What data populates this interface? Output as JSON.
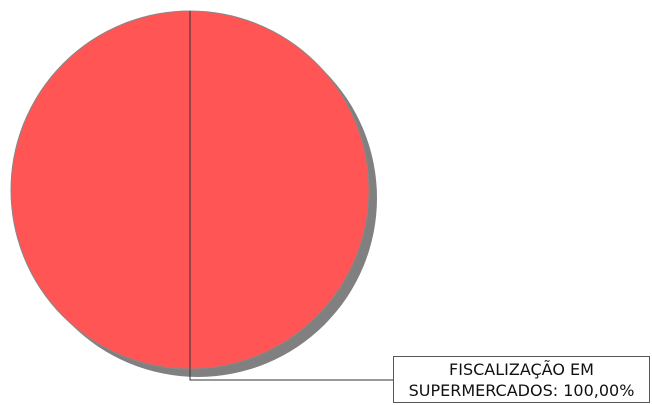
{
  "chart_data": {
    "type": "pie",
    "values": [
      100
    ],
    "value_labels": [
      "FISCALIZAÇÃO EM SUPERMERCADOS: 100,00%"
    ],
    "colors": [
      "#ff5555"
    ]
  }
}
